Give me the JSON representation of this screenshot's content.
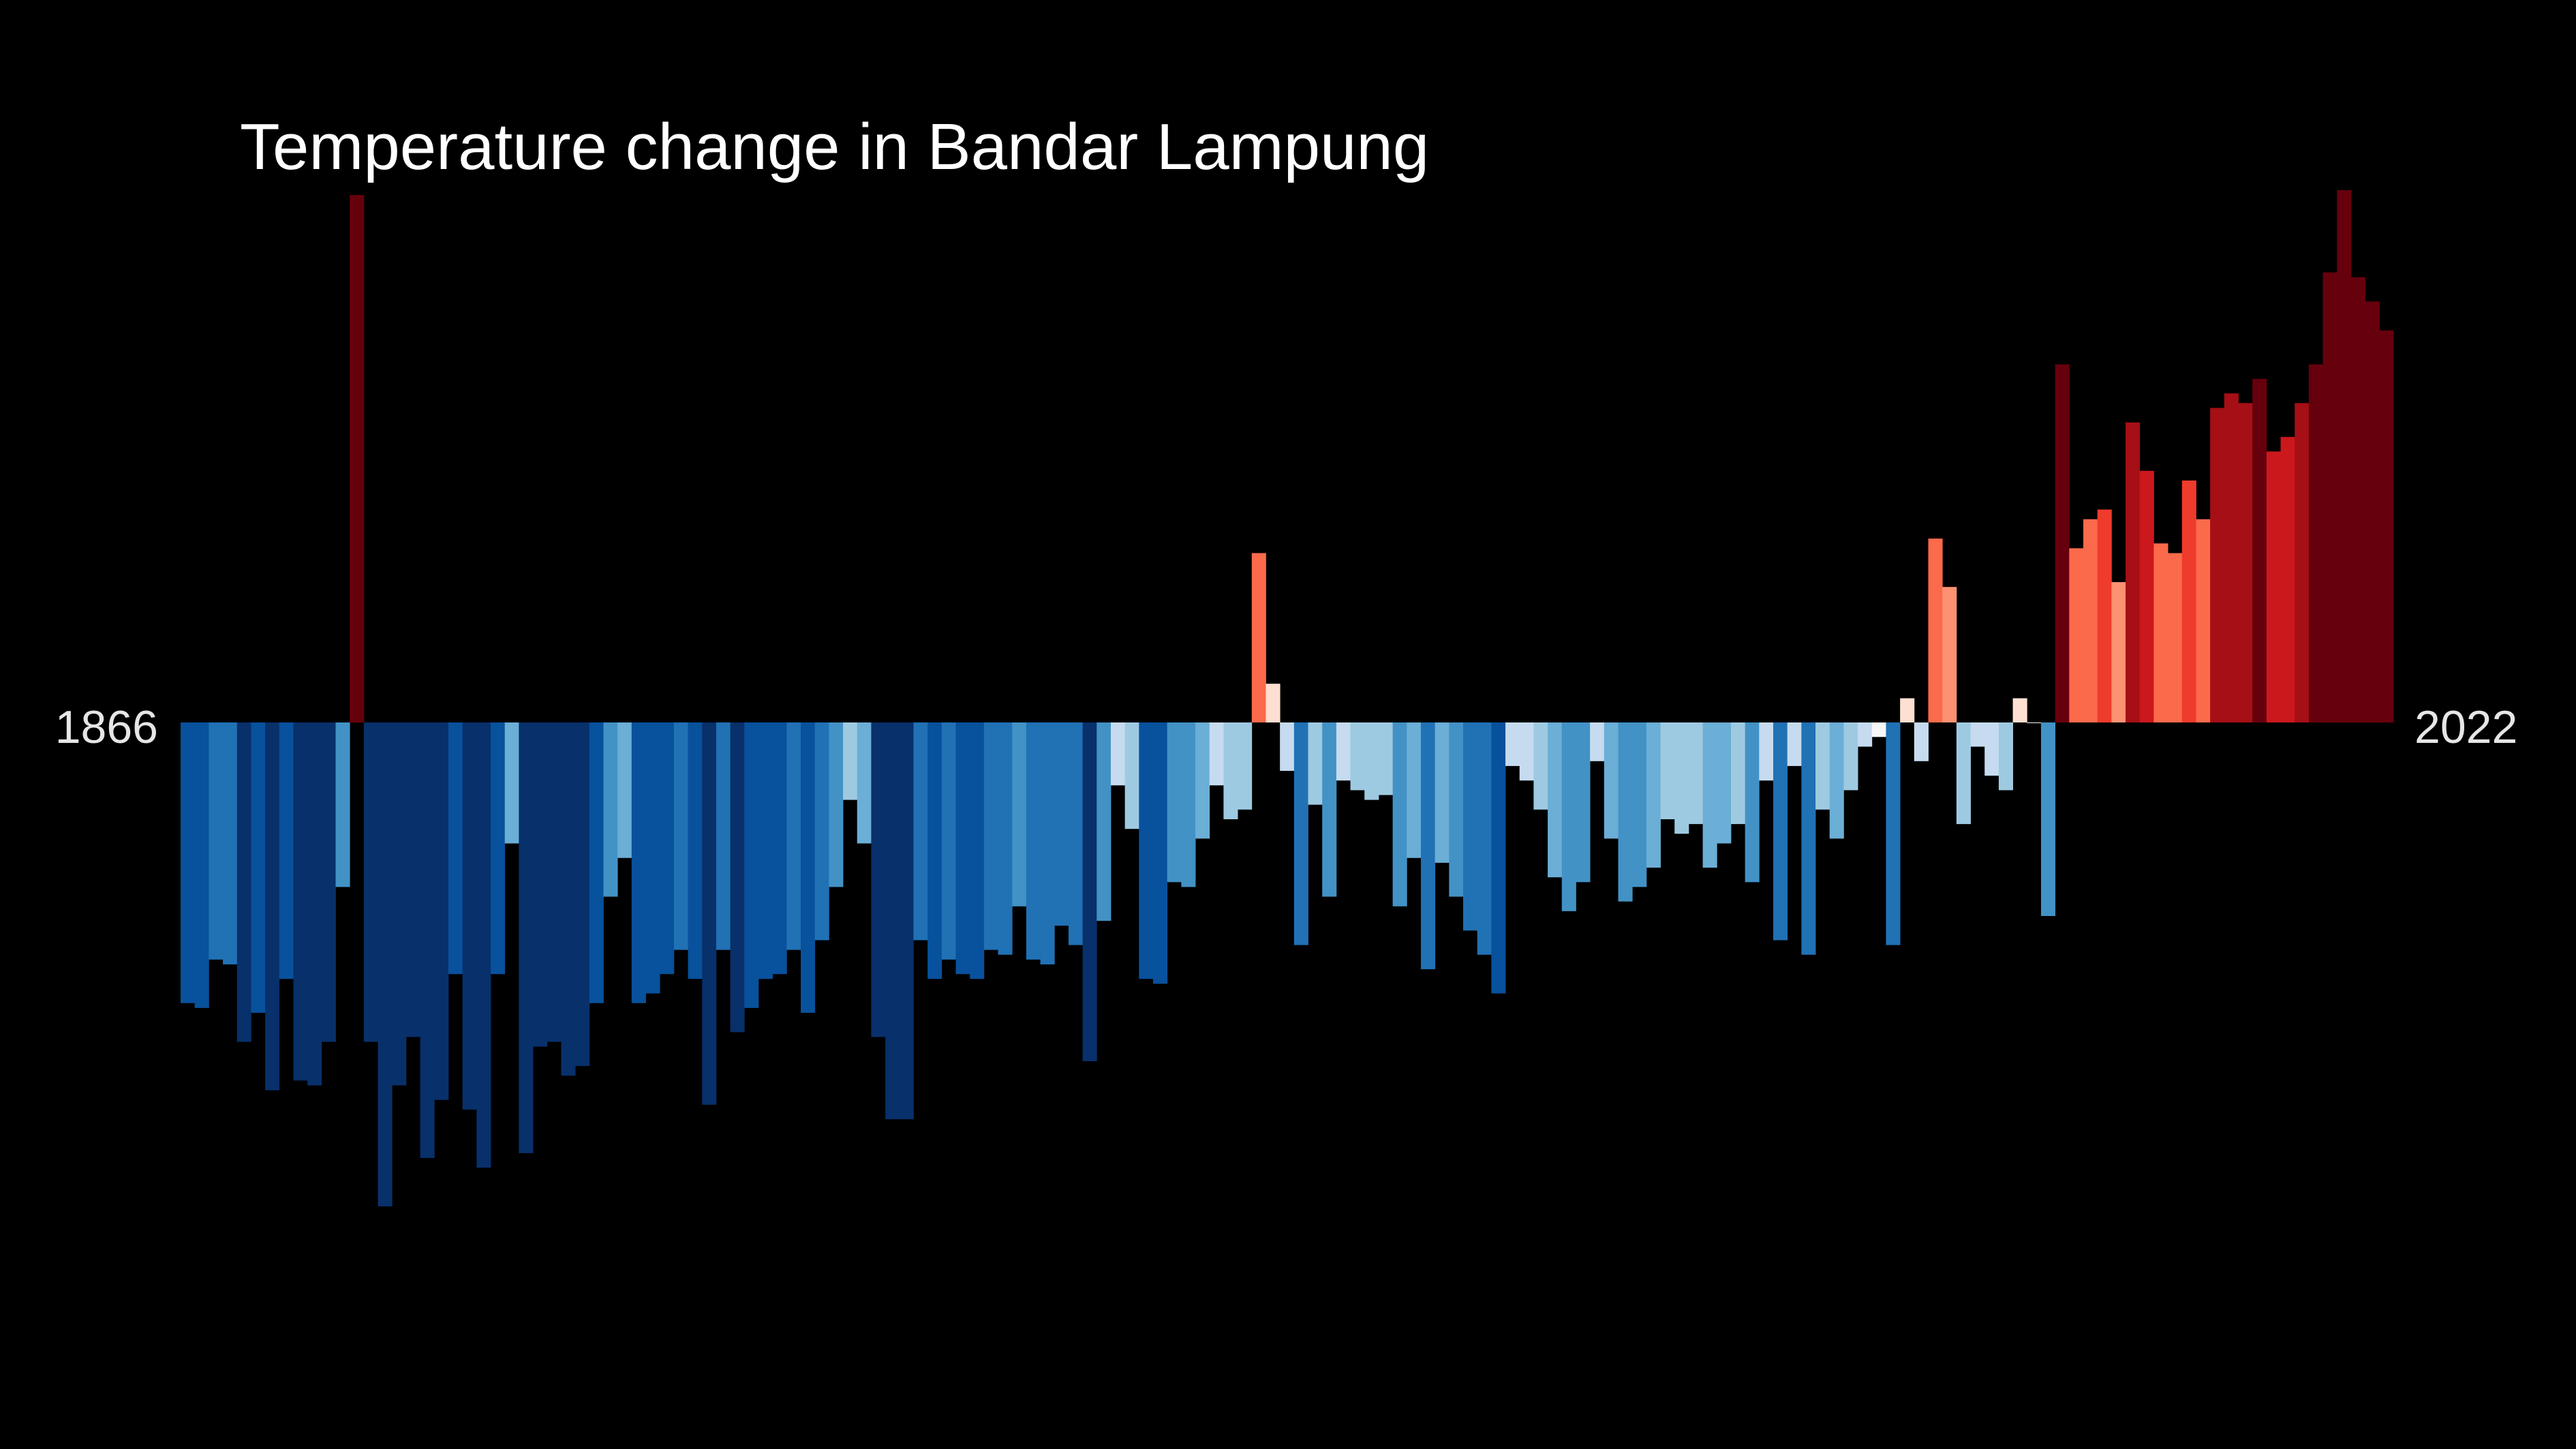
{
  "chart_data": {
    "type": "bar",
    "title": "Temperature change in Bandar Lampung",
    "x_start_label": "1866",
    "x_end_label": "2022",
    "x_start": 1866,
    "x_end": 2022,
    "xlabel": "",
    "ylabel": "",
    "grid": false,
    "legend": "none",
    "color_scale": "blue (cooler) to red (warmer)",
    "ylim": [
      -1.0,
      1.2
    ],
    "values": [
      -0.58,
      -0.59,
      -0.49,
      -0.5,
      -0.66,
      -0.6,
      -0.76,
      -0.53,
      -0.74,
      -0.75,
      -0.66,
      -0.34,
      1.09,
      -0.66,
      -1.0,
      -0.75,
      -0.65,
      -0.9,
      -0.78,
      -0.52,
      -0.8,
      -0.92,
      -0.52,
      -0.25,
      -0.89,
      -0.67,
      -0.66,
      -0.73,
      -0.71,
      -0.58,
      -0.36,
      -0.28,
      -0.58,
      -0.56,
      -0.52,
      -0.47,
      -0.53,
      -0.79,
      -0.47,
      -0.64,
      -0.59,
      -0.53,
      -0.52,
      -0.47,
      -0.6,
      -0.45,
      -0.34,
      -0.16,
      -0.25,
      -0.65,
      -0.82,
      -0.82,
      -0.45,
      -0.53,
      -0.49,
      -0.52,
      -0.53,
      -0.47,
      -0.48,
      -0.38,
      -0.49,
      -0.5,
      -0.42,
      -0.46,
      -0.7,
      -0.41,
      -0.13,
      -0.22,
      -0.53,
      -0.54,
      -0.33,
      -0.34,
      -0.24,
      -0.13,
      -0.2,
      -0.18,
      0.35,
      0.08,
      -0.1,
      -0.46,
      -0.17,
      -0.36,
      -0.12,
      -0.14,
      -0.16,
      -0.15,
      -0.38,
      -0.28,
      -0.51,
      -0.29,
      -0.36,
      -0.43,
      -0.48,
      -0.56,
      -0.09,
      -0.12,
      -0.18,
      -0.32,
      -0.39,
      -0.33,
      -0.08,
      -0.24,
      -0.37,
      -0.34,
      -0.3,
      -0.2,
      -0.23,
      -0.21,
      -0.3,
      -0.25,
      -0.21,
      -0.33,
      -0.12,
      -0.45,
      -0.09,
      -0.48,
      -0.18,
      -0.24,
      -0.14,
      -0.05,
      -0.03,
      -0.46,
      0.05,
      -0.08,
      0.38,
      0.28,
      -0.21,
      -0.05,
      -0.11,
      -0.14,
      0.05,
      0.0,
      -0.4,
      0.74,
      0.36,
      0.42,
      0.44,
      0.29,
      0.62,
      0.52,
      0.37,
      0.35,
      0.5,
      0.42,
      0.65,
      0.68,
      0.66,
      0.71,
      0.56,
      0.59,
      0.66,
      0.74,
      0.93,
      1.1,
      0.92,
      0.87,
      0.81
    ]
  }
}
